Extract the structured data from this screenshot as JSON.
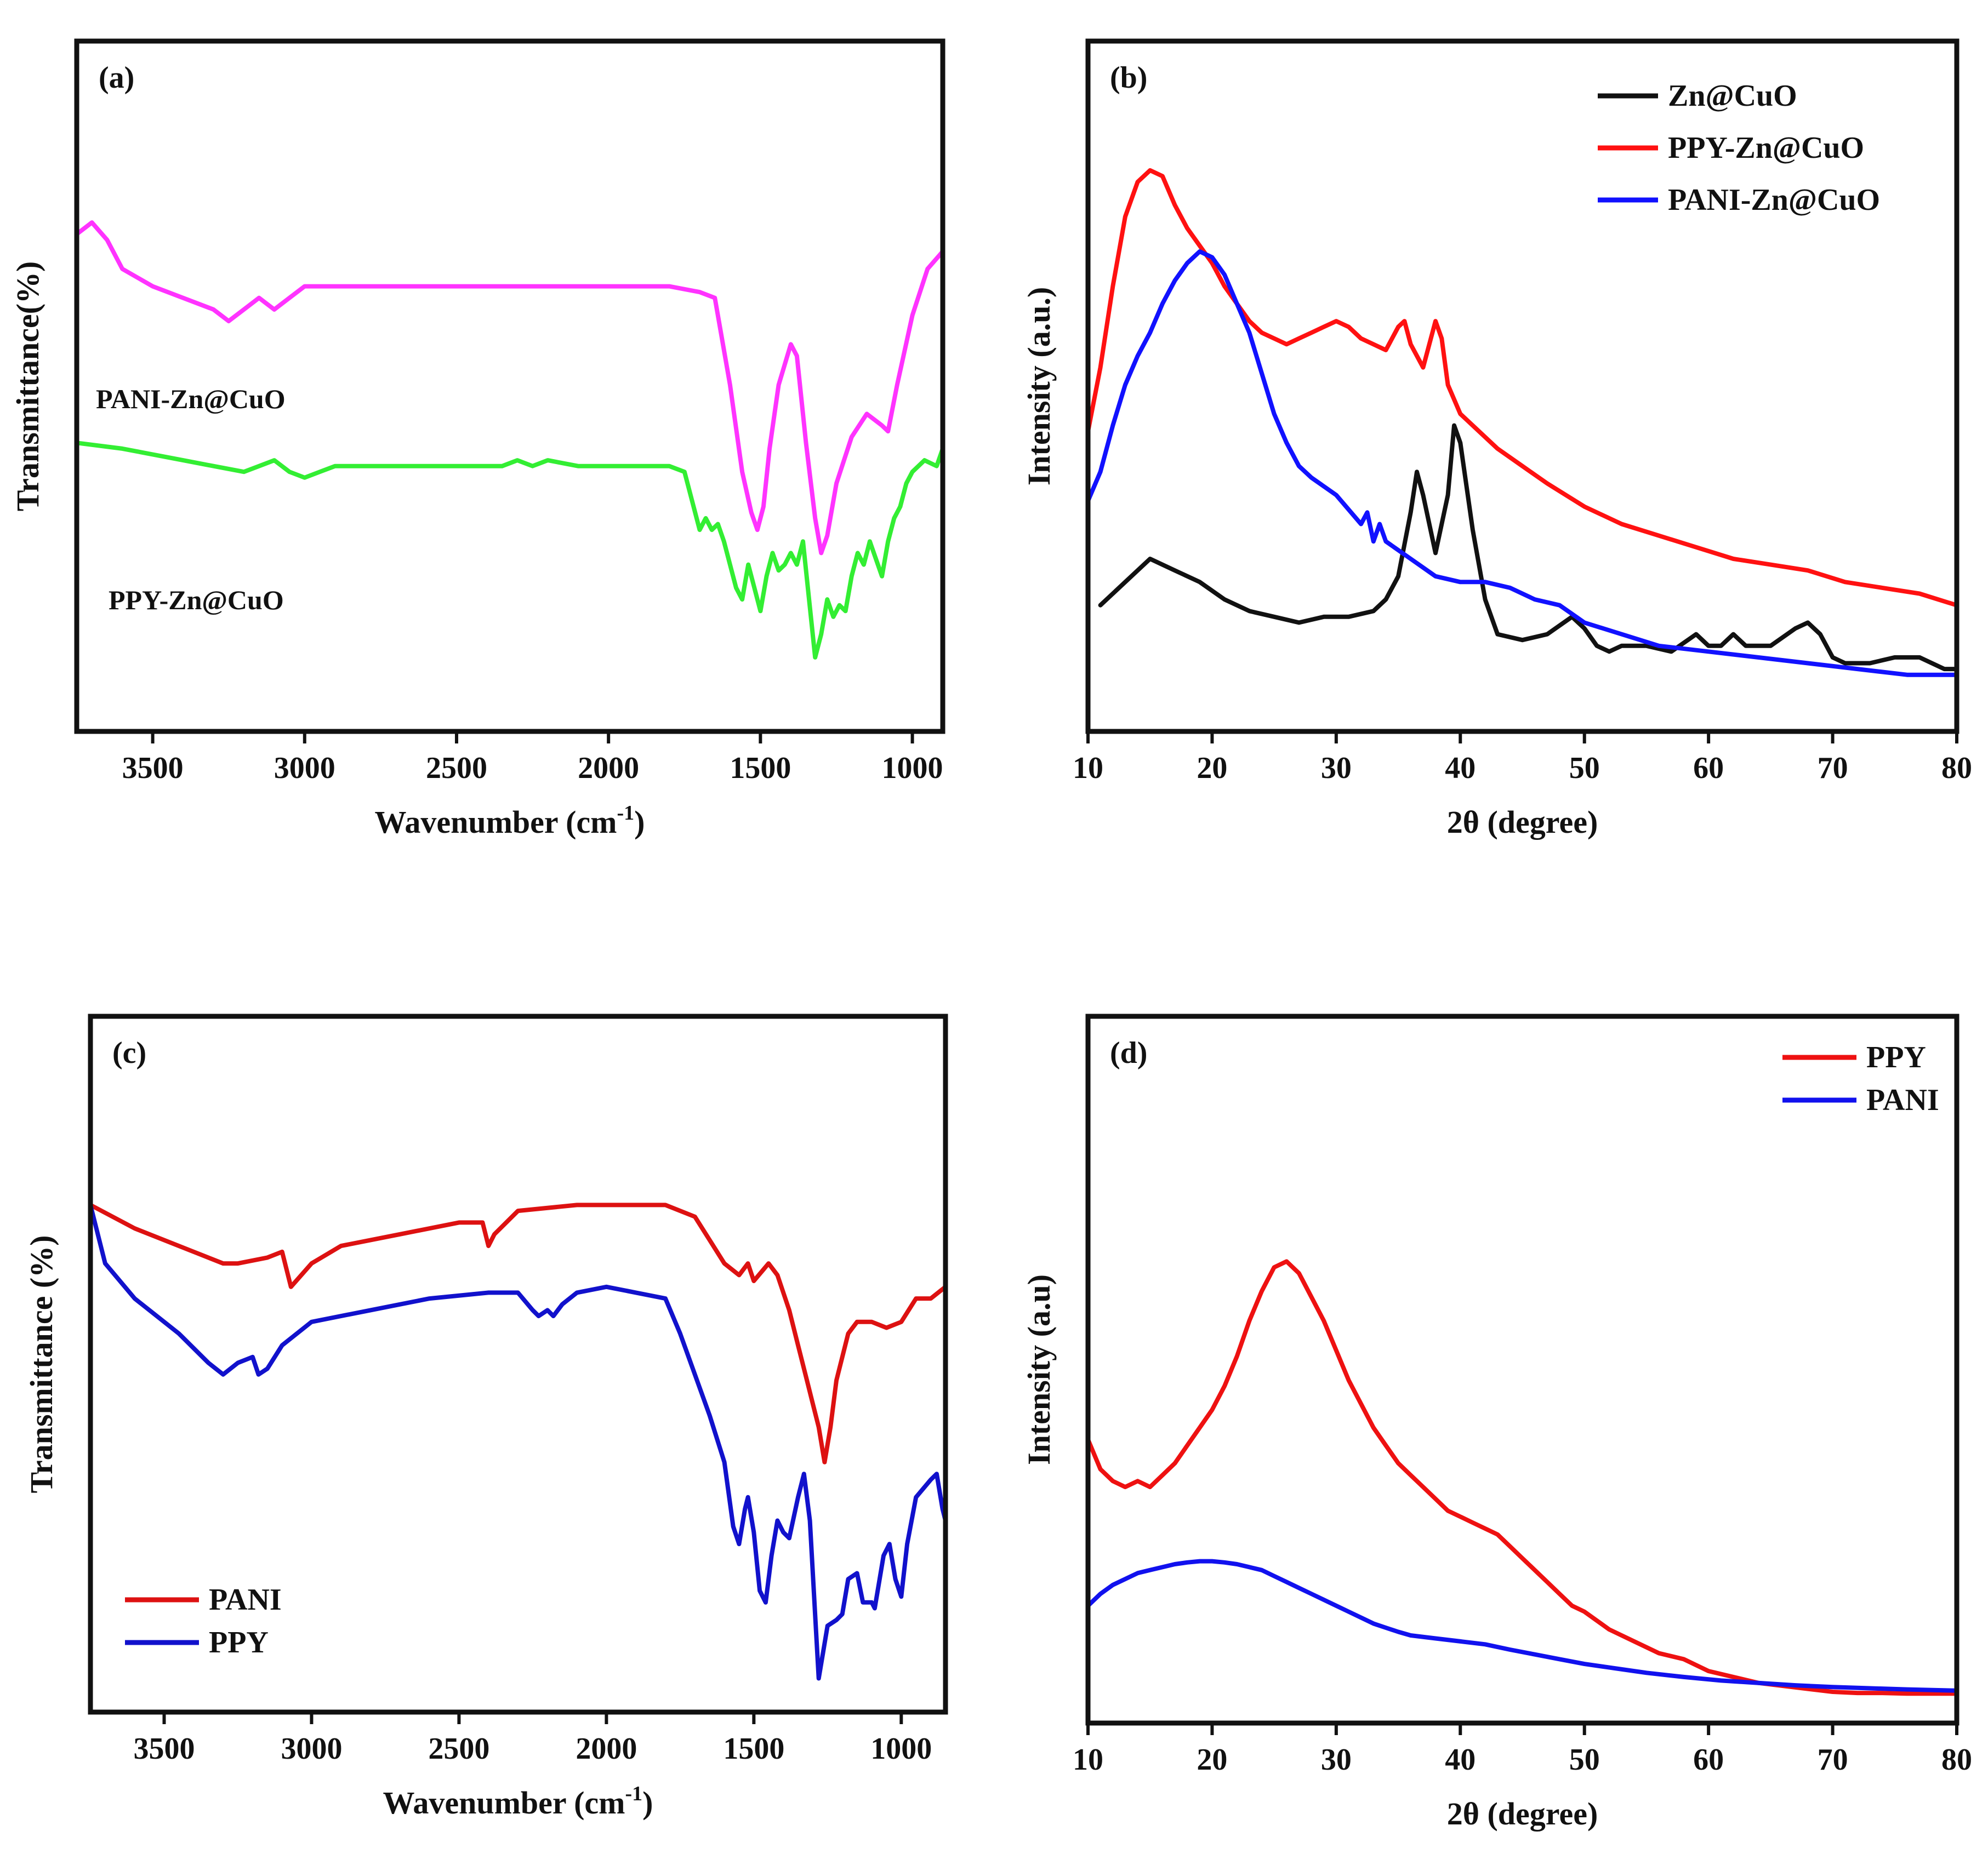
{
  "chart_data": [
    {
      "panel": "a",
      "type": "line",
      "panel_label": "(a)",
      "xlabel": "Wavenumber (cm",
      "xlabel_sup": "-1",
      "xlabel_end": ")",
      "ylabel": "Transmittance(%)",
      "xlim": [
        3750,
        900
      ],
      "ylim": [
        0,
        100
      ],
      "x_ticks": [
        3500,
        3000,
        2500,
        2000,
        1500,
        1000
      ],
      "annotations": [
        {
          "text": "PANI-Zn@CuO",
          "series": "PANI-Zn@CuO"
        },
        {
          "text": "PPY-Zn@CuO",
          "series": "PPY-Zn@CuO"
        }
      ],
      "series": [
        {
          "name": "PANI-Zn@CuO",
          "color": "#ff33ff",
          "x": [
            3750,
            3700,
            3650,
            3600,
            3500,
            3400,
            3300,
            3250,
            3200,
            3150,
            3100,
            3050,
            3000,
            2800,
            2500,
            2200,
            2000,
            1800,
            1700,
            1650,
            1600,
            1560,
            1530,
            1510,
            1490,
            1470,
            1440,
            1400,
            1380,
            1350,
            1320,
            1300,
            1280,
            1250,
            1200,
            1150,
            1100,
            1080,
            1050,
            1000,
            950,
            900
          ],
          "y": [
            81,
            83,
            80,
            75,
            72,
            70,
            68,
            66,
            68,
            70,
            68,
            70,
            72,
            72,
            72,
            72,
            72,
            72,
            71,
            70,
            55,
            40,
            33,
            30,
            34,
            44,
            55,
            62,
            60,
            45,
            32,
            26,
            29,
            38,
            46,
            50,
            48,
            47,
            55,
            67,
            75,
            78
          ]
        },
        {
          "name": "PPY-Zn@CuO",
          "color": "#33ee33",
          "x": [
            3750,
            3600,
            3400,
            3300,
            3200,
            3150,
            3100,
            3050,
            3000,
            2950,
            2900,
            2800,
            2500,
            2350,
            2300,
            2250,
            2200,
            2100,
            2000,
            1800,
            1750,
            1730,
            1700,
            1680,
            1660,
            1640,
            1620,
            1600,
            1580,
            1560,
            1540,
            1520,
            1500,
            1480,
            1460,
            1440,
            1420,
            1400,
            1380,
            1360,
            1340,
            1320,
            1300,
            1280,
            1260,
            1240,
            1220,
            1200,
            1180,
            1160,
            1140,
            1120,
            1100,
            1080,
            1060,
            1040,
            1020,
            1000,
            960,
            920,
            900
          ],
          "y": [
            45,
            44,
            42,
            41,
            40,
            41,
            42,
            40,
            39,
            40,
            41,
            41,
            41,
            41,
            42,
            41,
            42,
            41,
            41,
            41,
            40,
            36,
            30,
            32,
            30,
            31,
            28,
            24,
            20,
            18,
            24,
            20,
            16,
            22,
            26,
            23,
            24,
            26,
            24,
            28,
            18,
            8,
            12,
            18,
            15,
            17,
            16,
            22,
            26,
            24,
            28,
            25,
            22,
            28,
            32,
            34,
            38,
            40,
            42,
            41,
            44
          ]
        }
      ]
    },
    {
      "panel": "b",
      "type": "line",
      "panel_label": "(b)",
      "xlabel": "2θ (degree)",
      "ylabel": "Intensity (a.u.)",
      "xlim": [
        10,
        80
      ],
      "ylim": [
        0,
        100
      ],
      "x_ticks": [
        10,
        20,
        30,
        40,
        50,
        60,
        70,
        80
      ],
      "legend": [
        {
          "name": "Zn@CuO",
          "color": "#111111"
        },
        {
          "name": "PPY-Zn@CuO",
          "color": "#ff1111"
        },
        {
          "name": "PANI-Zn@CuO",
          "color": "#1111ff"
        }
      ],
      "series": [
        {
          "name": "Zn@CuO",
          "color": "#111111",
          "x": [
            11,
            13,
            15,
            17,
            19,
            21,
            23,
            25,
            27,
            29,
            31,
            33,
            34,
            35,
            36,
            36.5,
            37,
            38,
            39,
            39.5,
            40,
            41,
            42,
            43,
            45,
            47,
            49,
            50,
            51,
            52,
            53,
            55,
            57,
            59,
            60,
            61,
            62,
            63,
            65,
            67,
            68,
            69,
            70,
            71,
            73,
            75,
            77,
            79,
            80
          ],
          "y": [
            17,
            21,
            25,
            23,
            21,
            18,
            16,
            15,
            14,
            15,
            15,
            16,
            18,
            22,
            33,
            40,
            36,
            26,
            36,
            48,
            45,
            30,
            18,
            12,
            11,
            12,
            15,
            13,
            10,
            9,
            10,
            10,
            9,
            12,
            10,
            10,
            12,
            10,
            10,
            13,
            14,
            12,
            8,
            7,
            7,
            8,
            8,
            6,
            6
          ]
        },
        {
          "name": "PPY-Zn@CuO",
          "color": "#ff1111",
          "x": [
            10,
            11,
            12,
            13,
            14,
            15,
            16,
            17,
            18,
            19,
            20,
            21,
            22,
            23,
            24,
            25,
            26,
            27,
            28,
            29,
            30,
            31,
            32,
            33,
            34,
            35,
            35.5,
            36,
            37,
            37.5,
            38,
            38.5,
            39,
            40,
            41,
            43,
            45,
            47,
            50,
            53,
            56,
            59,
            62,
            65,
            68,
            71,
            74,
            77,
            80
          ],
          "y": [
            47,
            58,
            72,
            84,
            90,
            92,
            91,
            86,
            82,
            79,
            76,
            72,
            69,
            66,
            64,
            63,
            62,
            63,
            64,
            65,
            66,
            65,
            63,
            62,
            61,
            65,
            66,
            62,
            58,
            62,
            66,
            63,
            55,
            50,
            48,
            44,
            41,
            38,
            34,
            31,
            29,
            27,
            25,
            24,
            23,
            21,
            20,
            19,
            17
          ]
        },
        {
          "name": "PANI-Zn@CuO",
          "color": "#1111ff",
          "x": [
            10,
            11,
            12,
            13,
            14,
            15,
            16,
            17,
            18,
            19,
            20,
            21,
            22,
            23,
            24,
            25,
            26,
            27,
            28,
            30,
            32,
            32.5,
            33,
            33.5,
            34,
            36,
            38,
            40,
            42,
            44,
            46,
            48,
            50,
            53,
            56,
            60,
            64,
            68,
            72,
            76,
            80
          ],
          "y": [
            35,
            40,
            48,
            55,
            60,
            64,
            69,
            73,
            76,
            78,
            77,
            74,
            69,
            64,
            57,
            50,
            45,
            41,
            39,
            36,
            31,
            33,
            28,
            31,
            28,
            25,
            22,
            21,
            21,
            20,
            18,
            17,
            14,
            12,
            10,
            9,
            8,
            7,
            6,
            5,
            5
          ]
        }
      ]
    },
    {
      "panel": "c",
      "type": "line",
      "panel_label": "(c)",
      "xlabel": "Wavenumber (cm",
      "xlabel_sup": "-1",
      "xlabel_end": ")",
      "ylabel": "Transmittance (%)",
      "xlim": [
        3750,
        850
      ],
      "ylim": [
        0,
        100
      ],
      "x_ticks": [
        3500,
        3000,
        2500,
        2000,
        1500,
        1000
      ],
      "legend": [
        {
          "name": "PANI",
          "color": "#dd1111"
        },
        {
          "name": "PPY",
          "color": "#1111cc"
        }
      ],
      "series": [
        {
          "name": "PANI",
          "color": "#dd1111",
          "x": [
            3750,
            3600,
            3400,
            3300,
            3250,
            3150,
            3100,
            3070,
            3000,
            2900,
            2700,
            2500,
            2420,
            2400,
            2380,
            2300,
            2100,
            2000,
            1800,
            1700,
            1650,
            1600,
            1550,
            1520,
            1500,
            1450,
            1420,
            1380,
            1350,
            1320,
            1300,
            1280,
            1260,
            1240,
            1220,
            1180,
            1150,
            1100,
            1050,
            1000,
            950,
            900,
            850
          ],
          "y": [
            82,
            78,
            74,
            72,
            72,
            73,
            74,
            68,
            72,
            75,
            77,
            79,
            79,
            75,
            77,
            81,
            82,
            82,
            82,
            80,
            76,
            72,
            70,
            72,
            69,
            72,
            70,
            64,
            58,
            52,
            48,
            44,
            38,
            44,
            52,
            60,
            62,
            62,
            61,
            62,
            66,
            66,
            68
          ]
        },
        {
          "name": "PPY",
          "color": "#1111cc",
          "x": [
            3750,
            3700,
            3600,
            3450,
            3350,
            3300,
            3250,
            3200,
            3180,
            3150,
            3100,
            3000,
            2800,
            2600,
            2400,
            2300,
            2250,
            2230,
            2200,
            2180,
            2150,
            2100,
            2000,
            1900,
            1800,
            1750,
            1700,
            1650,
            1600,
            1570,
            1550,
            1530,
            1520,
            1500,
            1480,
            1460,
            1440,
            1420,
            1400,
            1380,
            1350,
            1330,
            1310,
            1290,
            1280,
            1270,
            1250,
            1220,
            1200,
            1180,
            1150,
            1130,
            1100,
            1090,
            1060,
            1040,
            1020,
            1000,
            980,
            950,
            900,
            880,
            860,
            850
          ],
          "y": [
            82,
            72,
            66,
            60,
            55,
            53,
            55,
            56,
            53,
            54,
            58,
            62,
            64,
            66,
            67,
            67,
            64,
            63,
            64,
            63,
            65,
            67,
            68,
            67,
            66,
            60,
            53,
            46,
            38,
            27,
            24,
            30,
            32,
            26,
            16,
            14,
            22,
            28,
            26,
            25,
            32,
            36,
            28,
            10,
            1,
            4,
            10,
            11,
            12,
            18,
            19,
            14,
            14,
            13,
            22,
            24,
            18,
            15,
            24,
            32,
            35,
            36,
            30,
            28
          ]
        }
      ]
    },
    {
      "panel": "d",
      "type": "line",
      "panel_label": "(d)",
      "xlabel": "2θ (degree)",
      "ylabel": "Intensity (a.u)",
      "xlim": [
        10,
        80
      ],
      "ylim": [
        0,
        100
      ],
      "x_ticks": [
        10,
        20,
        30,
        40,
        50,
        60,
        70,
        80
      ],
      "legend": [
        {
          "name": "PPY",
          "color": "#ee1111"
        },
        {
          "name": "PANI",
          "color": "#1111ee"
        }
      ],
      "series": [
        {
          "name": "PPY",
          "color": "#ee1111",
          "x": [
            10,
            11,
            12,
            13,
            14,
            15,
            16,
            17,
            18,
            19,
            20,
            21,
            22,
            23,
            24,
            25,
            26,
            27,
            28,
            29,
            30,
            31,
            32,
            33,
            34,
            35,
            36,
            37,
            38,
            39,
            40,
            41,
            42,
            43,
            44,
            45,
            46,
            47,
            48,
            49,
            50,
            52,
            54,
            56,
            58,
            60,
            62,
            64,
            66,
            68,
            70,
            72,
            74,
            76,
            78,
            80
          ],
          "y": [
            43,
            38,
            36,
            35,
            36,
            35,
            37,
            39,
            42,
            45,
            48,
            52,
            57,
            63,
            68,
            72,
            73,
            71,
            67,
            63,
            58,
            53,
            49,
            45,
            42,
            39,
            37,
            35,
            33,
            31,
            30,
            29,
            28,
            27,
            25,
            23,
            21,
            19,
            17,
            15,
            14,
            11,
            9,
            7,
            6,
            4,
            3,
            2,
            1.5,
            1,
            0.5,
            0.3,
            0.3,
            0.2,
            0.2,
            0.2
          ]
        },
        {
          "name": "PANI",
          "color": "#1111ee",
          "x": [
            10,
            11,
            12,
            13,
            14,
            15,
            16,
            17,
            18,
            19,
            20,
            21,
            22,
            23,
            24,
            25,
            26,
            27,
            28,
            29,
            30,
            31,
            32,
            33,
            34,
            35,
            36,
            38,
            40,
            42,
            44,
            46,
            48,
            50,
            52,
            55,
            58,
            61,
            64,
            67,
            70,
            73,
            76,
            80
          ],
          "y": [
            15,
            17,
            18.5,
            19.5,
            20.5,
            21,
            21.5,
            22,
            22.3,
            22.5,
            22.5,
            22.3,
            22,
            21.5,
            21,
            20,
            19,
            18,
            17,
            16,
            15,
            14,
            13,
            12,
            11.3,
            10.6,
            10,
            9.5,
            9,
            8.5,
            7.6,
            6.8,
            6,
            5.2,
            4.6,
            3.7,
            3,
            2.4,
            2,
            1.6,
            1.3,
            1.1,
            0.9,
            0.7
          ]
        }
      ]
    }
  ]
}
